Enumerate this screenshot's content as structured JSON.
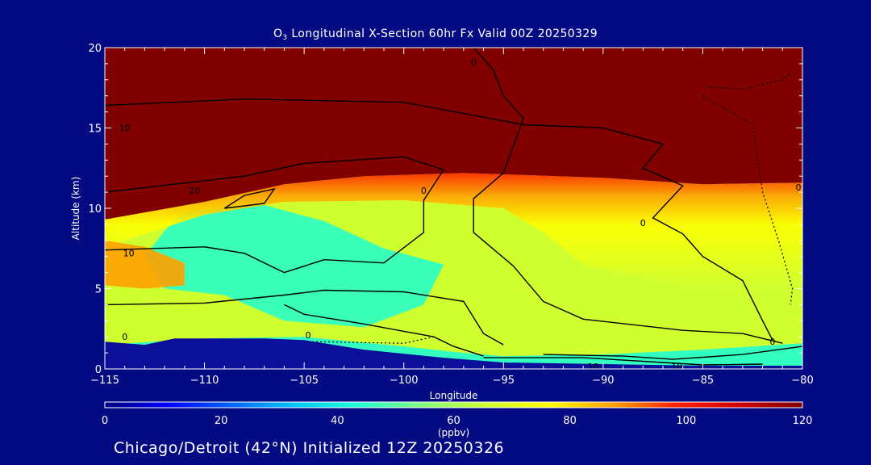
{
  "chart_data": {
    "type": "heatmap",
    "title_prefix": "O",
    "title_sub": "3",
    "title_rest": " Longitudinal X-Section 60hr  Fx Valid 00Z 20250329",
    "xlabel": "Longitude",
    "ylabel": "Altitude (km)",
    "xlim": [
      -115,
      -80
    ],
    "ylim": [
      0,
      20
    ],
    "x_ticks": [
      -115,
      -110,
      -105,
      -100,
      -95,
      -90,
      -85,
      -80
    ],
    "x_tick_labels": [
      "−115",
      "−110",
      "−105",
      "−100",
      "−95",
      "−90",
      "−85",
      "−80"
    ],
    "y_ticks": [
      0,
      5,
      10,
      15,
      20
    ],
    "y_tick_labels": [
      "0",
      "5",
      "10",
      "15",
      "20"
    ],
    "colorbar": {
      "label": "(ppbv)",
      "min": 0,
      "max": 120,
      "ticks": [
        0,
        20,
        40,
        60,
        80,
        100,
        120
      ],
      "tick_labels": [
        "0",
        "20",
        "40",
        "60",
        "80",
        "100",
        "120"
      ],
      "colors": [
        "#000080",
        "#0000ff",
        "#0066ff",
        "#00c8ff",
        "#20ffd0",
        "#80ff80",
        "#d0ff30",
        "#ffff00",
        "#ffa000",
        "#ff2000",
        "#d00000",
        "#800000"
      ]
    },
    "field_description_levels": {
      "stratosphere_ppbv": 120,
      "upper_troposphere_ppbv": 85,
      "mid_troposphere_ppbv": 62,
      "lower_troposphere_ppbv": 45
    },
    "terrain_km": [
      {
        "lon": -115,
        "alt": 1.7
      },
      {
        "lon": -113,
        "alt": 1.5
      },
      {
        "lon": -111.5,
        "alt": 1.9
      },
      {
        "lon": -107,
        "alt": 1.9
      },
      {
        "lon": -105,
        "alt": 1.8
      },
      {
        "lon": -102,
        "alt": 1.2
      },
      {
        "lon": -98,
        "alt": 0.7
      },
      {
        "lon": -95,
        "alt": 0.4
      },
      {
        "lon": -90,
        "alt": 0.3
      },
      {
        "lon": -85,
        "alt": 0.2
      },
      {
        "lon": -80,
        "alt": 0.2
      }
    ],
    "tropopause_km": [
      {
        "lon": -115,
        "alt": 9.3
      },
      {
        "lon": -110,
        "alt": 10.4
      },
      {
        "lon": -106,
        "alt": 11.5
      },
      {
        "lon": -102,
        "alt": 12.0
      },
      {
        "lon": -97,
        "alt": 12.2
      },
      {
        "lon": -90,
        "alt": 11.9
      },
      {
        "lon": -85,
        "alt": 11.5
      },
      {
        "lon": -80,
        "alt": 11.6
      }
    ],
    "contour_labels": [
      {
        "text": "10",
        "lon": -114,
        "alt": 15.0
      },
      {
        "text": "20",
        "lon": -110.5,
        "alt": 11.1
      },
      {
        "text": "10",
        "lon": -113.8,
        "alt": 7.2
      },
      {
        "text": "0",
        "lon": -99,
        "alt": 11.1
      },
      {
        "text": "0",
        "lon": -88,
        "alt": 9.1
      },
      {
        "text": "0",
        "lon": -114,
        "alt": 2.0
      },
      {
        "text": "0",
        "lon": -104.8,
        "alt": 2.1
      },
      {
        "text": "10",
        "lon": -90.5,
        "alt": 0.15
      },
      {
        "text": "10",
        "lon": -86.3,
        "alt": 0.15
      },
      {
        "text": "0",
        "lon": -81.5,
        "alt": 1.7
      },
      {
        "text": "0",
        "lon": -80.2,
        "alt": 11.3
      },
      {
        "text": "0",
        "lon": -96.5,
        "alt": 19.1
      }
    ]
  },
  "footer": "Chicago/Detroit (42°N) Initialized 12Z 20250326"
}
